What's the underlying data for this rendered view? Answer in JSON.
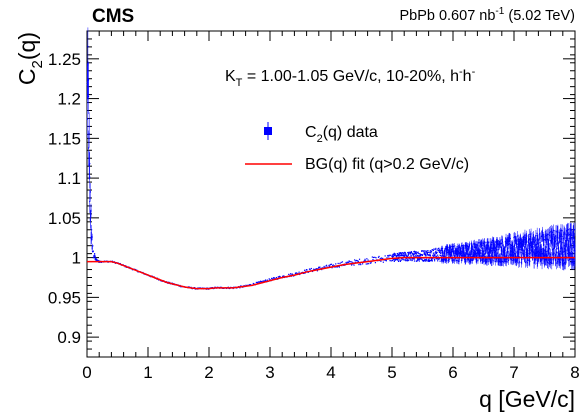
{
  "chart_data": {
    "type": "scatter",
    "experiment_label": "CMS",
    "luminosity_label": "PbPb 0.607 nb",
    "luminosity_exponent": "-1",
    "energy_label": "(5.02 TeV)",
    "annotation": {
      "kt_symbol": "K",
      "kt_subscript": "T",
      "text": " = 1.00-1.05 GeV/c, 10-20%, h",
      "sup1": "-",
      "mid": "h",
      "sup2": "-"
    },
    "xlabel": "q [GeV/c]",
    "ylabel": "C",
    "ylabel_subscript": "2",
    "ylabel_suffix": "(q)",
    "xlim": [
      0,
      8
    ],
    "ylim": [
      0.875,
      1.285
    ],
    "x_ticks": [
      0,
      1,
      2,
      3,
      4,
      5,
      6,
      7,
      8
    ],
    "x_tick_labels": [
      "0",
      "1",
      "2",
      "3",
      "4",
      "5",
      "6",
      "7",
      "8"
    ],
    "y_ticks": [
      0.9,
      0.95,
      1.0,
      1.05,
      1.1,
      1.15,
      1.2,
      1.25
    ],
    "y_tick_labels": [
      "0.9",
      "0.95",
      "1",
      "1.05",
      "1.1",
      "1.15",
      "1.2",
      "1.25"
    ],
    "legend": {
      "placement": "upper-center",
      "data_prefix": "C",
      "data_sub": "2",
      "data_suffix": "(q) data",
      "fit_label": "BG(q) fit (q>0.2 GeV/c)"
    },
    "series": [
      {
        "name": "C2(q) data",
        "color": "#0000ff",
        "style": "markers with error bars",
        "x": [
          0.02,
          0.04,
          0.06,
          0.08,
          0.1,
          0.15,
          0.2,
          0.3,
          0.4,
          0.5,
          0.6,
          0.7,
          0.8,
          0.9,
          1.0,
          1.1,
          1.2,
          1.3,
          1.4,
          1.5,
          1.6,
          1.7,
          1.8,
          1.9,
          2.0,
          2.1,
          2.2,
          2.3,
          2.4,
          2.5,
          2.6,
          2.7,
          2.8,
          2.9,
          3.0,
          3.2,
          3.4,
          3.6,
          3.8,
          4.0,
          4.2,
          4.4,
          4.6,
          4.8,
          5.0,
          5.2,
          5.4,
          5.6,
          5.8,
          6.0,
          6.2,
          6.4,
          6.6,
          6.8,
          7.0,
          7.2,
          7.4,
          7.6,
          7.8,
          8.0
        ],
        "y": [
          1.2,
          1.11,
          1.05,
          1.02,
          1.005,
          0.997,
          0.995,
          0.995,
          0.995,
          0.993,
          0.99,
          0.987,
          0.984,
          0.981,
          0.978,
          0.975,
          0.972,
          0.969,
          0.967,
          0.965,
          0.963,
          0.962,
          0.961,
          0.961,
          0.961,
          0.962,
          0.962,
          0.962,
          0.962,
          0.963,
          0.964,
          0.966,
          0.968,
          0.97,
          0.972,
          0.976,
          0.979,
          0.983,
          0.986,
          0.989,
          0.992,
          0.994,
          0.996,
          0.998,
          1.0,
          1.001,
          1.002,
          1.003,
          1.004,
          1.005,
          1.006,
          1.007,
          1.008,
          1.009,
          1.01,
          1.011,
          1.012,
          1.013,
          1.014,
          1.015
        ],
        "spread": [
          0.03,
          0.02,
          0.012,
          0.006,
          0.003,
          0.0008,
          0.0005,
          0.0004,
          0.0004,
          0.0004,
          0.0004,
          0.0004,
          0.0004,
          0.0004,
          0.0004,
          0.0004,
          0.0004,
          0.0004,
          0.0004,
          0.0004,
          0.0004,
          0.0004,
          0.0004,
          0.0004,
          0.0004,
          0.0004,
          0.0004,
          0.0004,
          0.0005,
          0.0005,
          0.0005,
          0.0006,
          0.0006,
          0.0007,
          0.0007,
          0.0008,
          0.0009,
          0.001,
          0.0011,
          0.0012,
          0.0014,
          0.0016,
          0.0018,
          0.002,
          0.0023,
          0.0026,
          0.003,
          0.0035,
          0.004,
          0.0045,
          0.005,
          0.0056,
          0.0062,
          0.0068,
          0.0075,
          0.0082,
          0.0088,
          0.0094,
          0.01,
          0.0105
        ]
      },
      {
        "name": "BG(q) fit (q>0.2 GeV/c)",
        "color": "#ff0000",
        "style": "line",
        "x": [
          0.0,
          0.05,
          0.1,
          0.15,
          0.2,
          0.3,
          0.4,
          0.5,
          0.6,
          0.7,
          0.8,
          0.9,
          1.0,
          1.1,
          1.2,
          1.3,
          1.4,
          1.5,
          1.6,
          1.7,
          1.8,
          1.9,
          2.0,
          2.1,
          2.2,
          2.3,
          2.4,
          2.5,
          2.6,
          2.7,
          2.8,
          2.9,
          3.0,
          3.2,
          3.4,
          3.6,
          3.8,
          4.0,
          4.2,
          4.4,
          4.6,
          4.8,
          5.0,
          5.2,
          5.4,
          5.6,
          5.8,
          6.0,
          6.5,
          7.0,
          7.5,
          8.0
        ],
        "y": [
          0.995,
          0.995,
          0.995,
          0.995,
          0.995,
          0.995,
          0.995,
          0.993,
          0.99,
          0.987,
          0.984,
          0.981,
          0.978,
          0.975,
          0.972,
          0.969,
          0.967,
          0.965,
          0.963,
          0.962,
          0.961,
          0.961,
          0.961,
          0.962,
          0.962,
          0.962,
          0.962,
          0.963,
          0.964,
          0.965,
          0.967,
          0.969,
          0.971,
          0.975,
          0.978,
          0.982,
          0.985,
          0.988,
          0.991,
          0.993,
          0.995,
          0.997,
          0.999,
          1.0,
          1.0,
          1.0,
          1.0,
          1.0,
          1.0,
          1.0,
          1.0,
          1.0
        ]
      }
    ]
  }
}
